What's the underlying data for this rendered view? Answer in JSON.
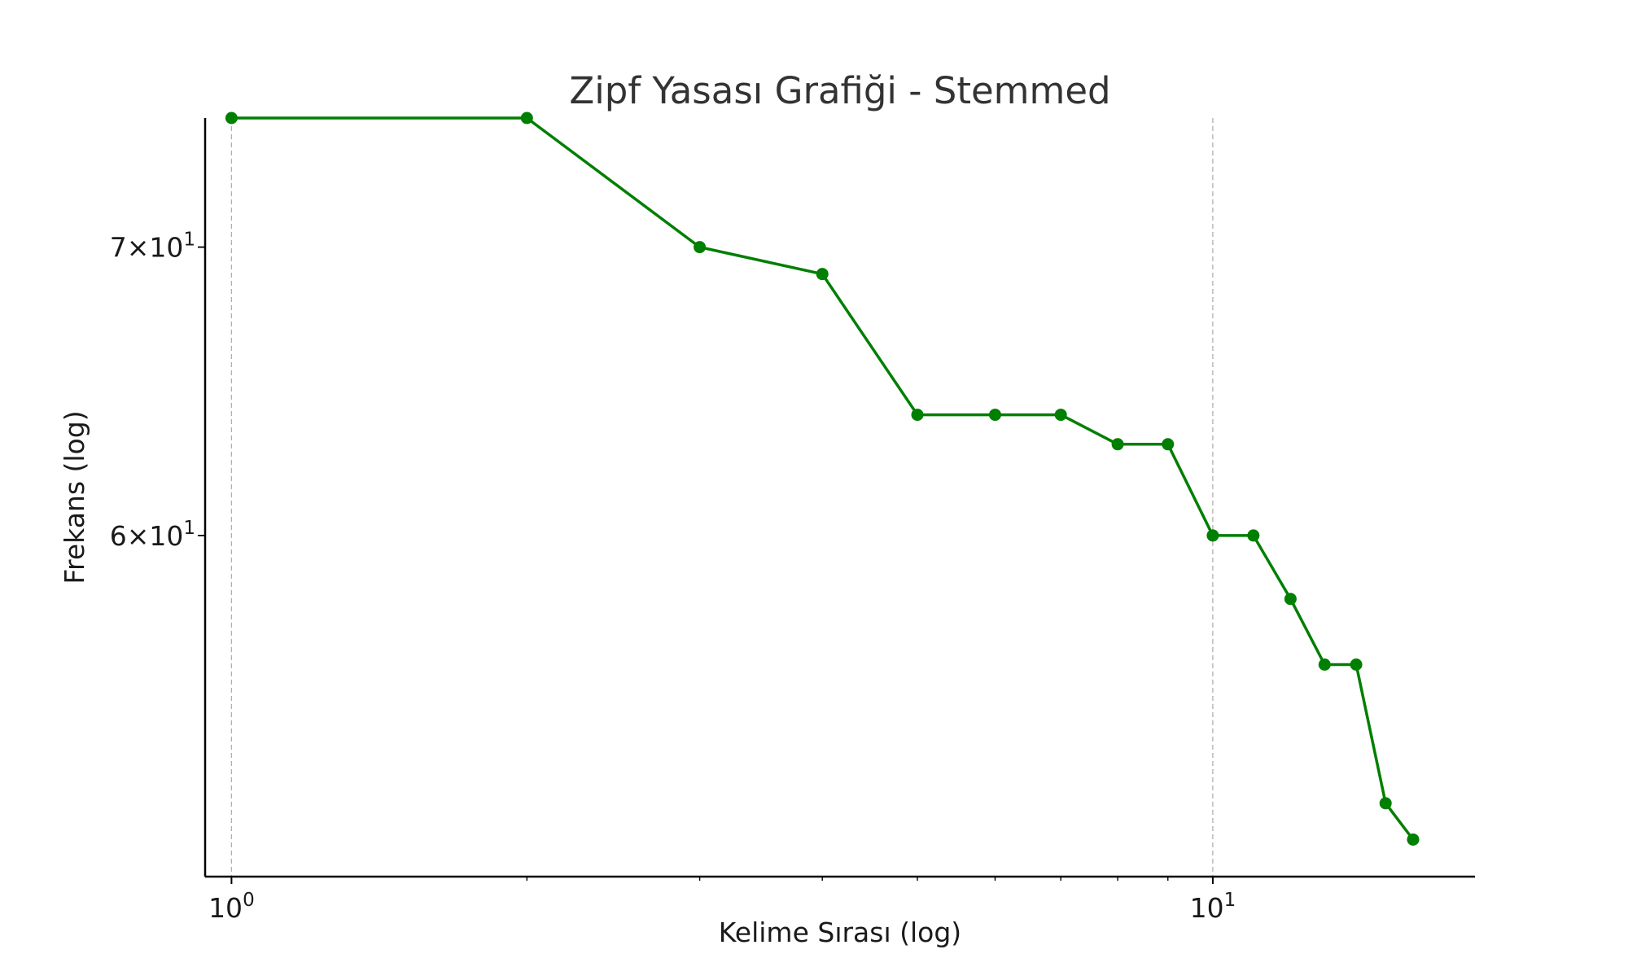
{
  "chart_data": {
    "type": "line",
    "title": "Zipf Yasası Grafiği - Stemmed",
    "xlabel": "Kelime Sırası (log)",
    "ylabel": "Frekans (log)",
    "x_scale": "log",
    "y_scale": "log",
    "xlim": [
      0.94,
      18.5
    ],
    "ylim": [
      50.0,
      75.0
    ],
    "grid": "vertical dashed at major x ticks",
    "legend": "none",
    "x_ticks": [
      {
        "value": 1,
        "base": "10",
        "exp": "0"
      },
      {
        "value": 10,
        "base": "10",
        "exp": "1"
      }
    ],
    "y_ticks": [
      {
        "value": 60,
        "mant": "6",
        "base": "10",
        "exp": "1"
      },
      {
        "value": 70,
        "mant": "7",
        "base": "10",
        "exp": "1"
      }
    ],
    "series": [
      {
        "color": "#007f00",
        "x": [
          1,
          2,
          3,
          4,
          5,
          6,
          7,
          8,
          9,
          10,
          11,
          12,
          13,
          14,
          15,
          16
        ],
        "y": [
          75,
          75,
          70,
          69,
          64,
          64,
          64,
          63,
          63,
          60,
          60,
          58,
          56,
          56,
          52,
          51
        ]
      }
    ]
  }
}
